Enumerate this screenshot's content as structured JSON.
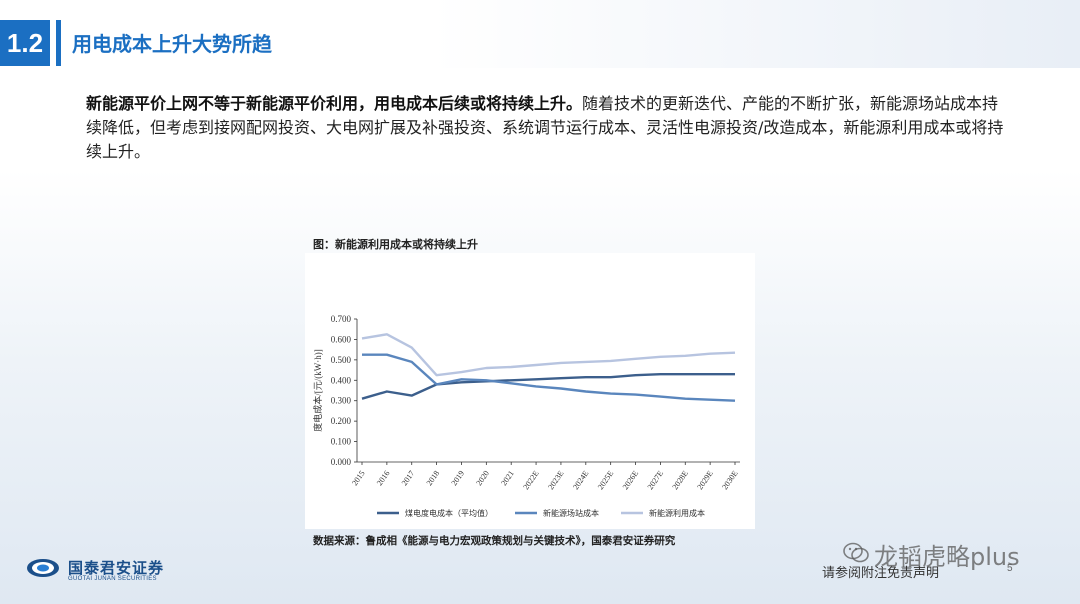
{
  "header": {
    "section_number": "1.2",
    "title": "用电成本上升大势所趋"
  },
  "body": {
    "bold_text": "新能源平价上网不等于新能源平价利用，用电成本后续或将持续上升。",
    "normal_text": "随着技术的更新迭代、产能的不断扩张，新能源场站成本持续降低，但考虑到接网配网投资、大电网扩展及补强投资、系统调节运行成本、灵活性电源投资/改造成本，新能源利用成本或将持续上升。"
  },
  "figure": {
    "title": "图：新能源利用成本或将持续上升",
    "source": "数据来源：鲁成相《能源与电力宏观政策规划与关键技术》，国泰君安证券研究"
  },
  "chart_data": {
    "type": "line",
    "ylabel": "度电成本/[元/(kW·h)]",
    "xlabel": "",
    "ylim": [
      0,
      0.7
    ],
    "y_ticks": [
      "0.000",
      "0.100",
      "0.200",
      "0.300",
      "0.400",
      "0.500",
      "0.600",
      "0.700"
    ],
    "x": [
      "2015",
      "2016",
      "2017",
      "2018",
      "2019",
      "2020",
      "2021",
      "2022E",
      "2023E",
      "2024E",
      "2025E",
      "2026E",
      "2027E",
      "2028E",
      "2029E",
      "2030E"
    ],
    "series": [
      {
        "name": "煤电度电成本（平均值）",
        "color": "#3c5f8c",
        "values": [
          0.31,
          0.345,
          0.325,
          0.38,
          0.39,
          0.395,
          0.4,
          0.405,
          0.41,
          0.415,
          0.415,
          0.425,
          0.43,
          0.43,
          0.43,
          0.43
        ]
      },
      {
        "name": "新能源场站成本",
        "color": "#5a86bd",
        "values": [
          0.525,
          0.525,
          0.49,
          0.38,
          0.405,
          0.4,
          0.385,
          0.37,
          0.36,
          0.345,
          0.335,
          0.33,
          0.32,
          0.31,
          0.305,
          0.3
        ]
      },
      {
        "name": "新能源利用成本",
        "color": "#b7c4e0",
        "values": [
          0.605,
          0.625,
          0.56,
          0.425,
          0.44,
          0.46,
          0.465,
          0.475,
          0.485,
          0.49,
          0.495,
          0.505,
          0.515,
          0.52,
          0.53,
          0.535
        ]
      }
    ],
    "grid": false,
    "legend_position": "bottom"
  },
  "footer": {
    "logo_cn": "国泰君安证券",
    "logo_en": "GUOTAI JUNAN SECURITIES",
    "disclaimer": "请参阅附注免责声明",
    "page_number": "5",
    "watermark": "龙韬虎略plus",
    "logo_colors": {
      "blue": "#1b4f8a",
      "accent": "#2a7fd4"
    }
  }
}
